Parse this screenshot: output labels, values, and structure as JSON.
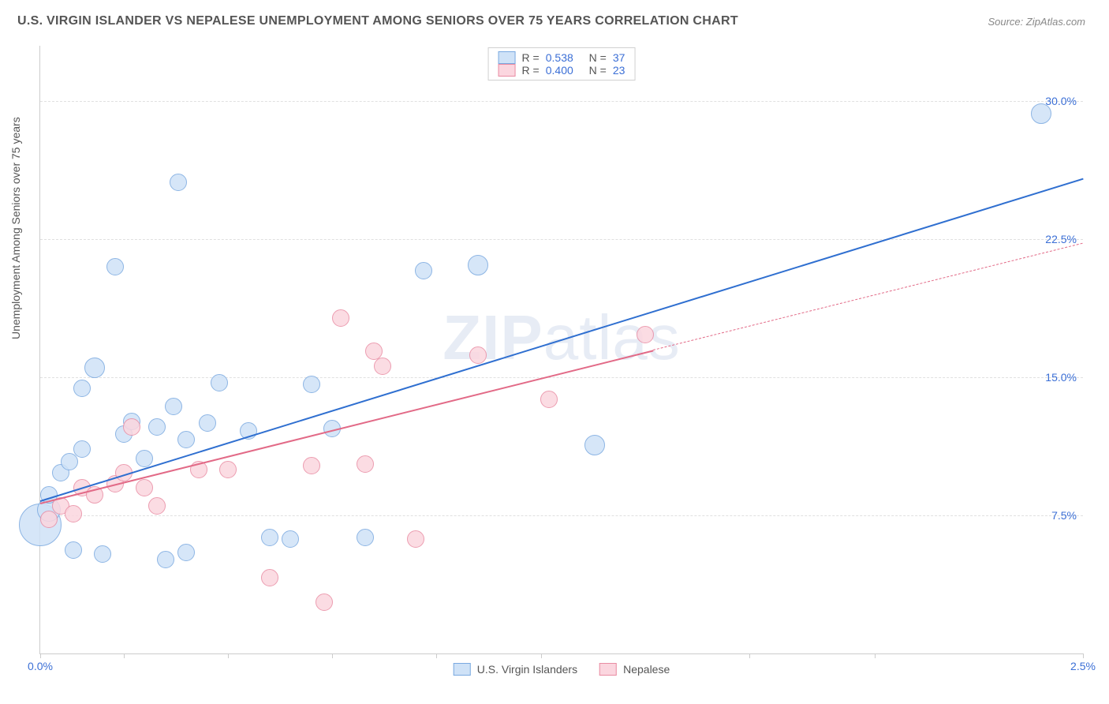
{
  "title": "U.S. VIRGIN ISLANDER VS NEPALESE UNEMPLOYMENT AMONG SENIORS OVER 75 YEARS CORRELATION CHART",
  "source": "Source: ZipAtlas.com",
  "ylabel": "Unemployment Among Seniors over 75 years",
  "watermark_a": "ZIP",
  "watermark_b": "atlas",
  "chart": {
    "type": "scatter",
    "background_color": "#ffffff",
    "grid_color": "#e0e0e0",
    "axis_color": "#cccccc",
    "tick_label_color": "#3b6fd6",
    "label_color": "#555555",
    "label_fontsize": 14,
    "title_fontsize": 16,
    "xlim": [
      0.0,
      2.5
    ],
    "ylim": [
      0.0,
      33.0
    ],
    "xticks": [
      0.0,
      0.2,
      0.45,
      0.7,
      0.95,
      1.2,
      1.7,
      2.0,
      2.5
    ],
    "xtick_labels": {
      "0.0": "0.0%",
      "2.5": "2.5%"
    },
    "yticks": [
      7.5,
      15.0,
      22.5,
      30.0
    ],
    "ytick_labels": [
      "7.5%",
      "15.0%",
      "22.5%",
      "30.0%"
    ]
  },
  "series": [
    {
      "name": "U.S. Virgin Islanders",
      "fill": "#cfe2f7",
      "stroke": "#7aa9e0",
      "line_color": "#2f6fd0",
      "R_label": "R =",
      "R": "0.538",
      "N_label": "N =",
      "N": "37",
      "trend": {
        "x1": 0.0,
        "y1": 8.3,
        "x2": 2.5,
        "y2": 25.8,
        "width": 2
      },
      "points": [
        {
          "x": 0.0,
          "y": 7.0,
          "r": 26
        },
        {
          "x": 0.02,
          "y": 7.8,
          "r": 14
        },
        {
          "x": 0.02,
          "y": 8.6,
          "r": 10
        },
        {
          "x": 0.05,
          "y": 9.8,
          "r": 10
        },
        {
          "x": 0.07,
          "y": 10.4,
          "r": 10
        },
        {
          "x": 0.1,
          "y": 11.1,
          "r": 10
        },
        {
          "x": 0.08,
          "y": 5.6,
          "r": 10
        },
        {
          "x": 0.15,
          "y": 5.4,
          "r": 10
        },
        {
          "x": 0.1,
          "y": 14.4,
          "r": 10
        },
        {
          "x": 0.13,
          "y": 15.5,
          "r": 12
        },
        {
          "x": 0.18,
          "y": 21.0,
          "r": 10
        },
        {
          "x": 0.2,
          "y": 11.9,
          "r": 10
        },
        {
          "x": 0.22,
          "y": 12.6,
          "r": 10
        },
        {
          "x": 0.25,
          "y": 10.6,
          "r": 10
        },
        {
          "x": 0.28,
          "y": 12.3,
          "r": 10
        },
        {
          "x": 0.3,
          "y": 5.1,
          "r": 10
        },
        {
          "x": 0.33,
          "y": 25.6,
          "r": 10
        },
        {
          "x": 0.32,
          "y": 13.4,
          "r": 10
        },
        {
          "x": 0.35,
          "y": 11.6,
          "r": 10
        },
        {
          "x": 0.35,
          "y": 5.5,
          "r": 10
        },
        {
          "x": 0.4,
          "y": 12.5,
          "r": 10
        },
        {
          "x": 0.43,
          "y": 14.7,
          "r": 10
        },
        {
          "x": 0.5,
          "y": 12.1,
          "r": 10
        },
        {
          "x": 0.55,
          "y": 6.3,
          "r": 10
        },
        {
          "x": 0.6,
          "y": 6.2,
          "r": 10
        },
        {
          "x": 0.65,
          "y": 14.6,
          "r": 10
        },
        {
          "x": 0.7,
          "y": 12.2,
          "r": 10
        },
        {
          "x": 0.78,
          "y": 6.3,
          "r": 10
        },
        {
          "x": 0.92,
          "y": 20.8,
          "r": 10
        },
        {
          "x": 1.05,
          "y": 21.1,
          "r": 12
        },
        {
          "x": 1.33,
          "y": 11.3,
          "r": 12
        },
        {
          "x": 2.4,
          "y": 29.3,
          "r": 12
        }
      ]
    },
    {
      "name": "Nepalese",
      "fill": "#fbd6df",
      "stroke": "#e98ca3",
      "line_color": "#e26a87",
      "R_label": "R =",
      "R": "0.400",
      "N_label": "N =",
      "N": "23",
      "trend_solid": {
        "x1": 0.0,
        "y1": 8.2,
        "x2": 1.47,
        "y2": 16.5,
        "width": 2
      },
      "trend_dash": {
        "x1": 1.47,
        "y1": 16.5,
        "x2": 2.5,
        "y2": 22.3,
        "width": 1
      },
      "points": [
        {
          "x": 0.02,
          "y": 7.3,
          "r": 10
        },
        {
          "x": 0.05,
          "y": 8.0,
          "r": 10
        },
        {
          "x": 0.08,
          "y": 7.6,
          "r": 10
        },
        {
          "x": 0.1,
          "y": 9.0,
          "r": 10
        },
        {
          "x": 0.13,
          "y": 8.6,
          "r": 10
        },
        {
          "x": 0.18,
          "y": 9.2,
          "r": 10
        },
        {
          "x": 0.2,
          "y": 9.8,
          "r": 10
        },
        {
          "x": 0.22,
          "y": 12.3,
          "r": 10
        },
        {
          "x": 0.25,
          "y": 9.0,
          "r": 10
        },
        {
          "x": 0.28,
          "y": 8.0,
          "r": 10
        },
        {
          "x": 0.38,
          "y": 10.0,
          "r": 10
        },
        {
          "x": 0.45,
          "y": 10.0,
          "r": 10
        },
        {
          "x": 0.55,
          "y": 4.1,
          "r": 10
        },
        {
          "x": 0.65,
          "y": 10.2,
          "r": 10
        },
        {
          "x": 0.68,
          "y": 2.8,
          "r": 10
        },
        {
          "x": 0.72,
          "y": 18.2,
          "r": 10
        },
        {
          "x": 0.78,
          "y": 10.3,
          "r": 10
        },
        {
          "x": 0.8,
          "y": 16.4,
          "r": 10
        },
        {
          "x": 0.82,
          "y": 15.6,
          "r": 10
        },
        {
          "x": 0.9,
          "y": 6.2,
          "r": 10
        },
        {
          "x": 1.05,
          "y": 16.2,
          "r": 10
        },
        {
          "x": 1.22,
          "y": 13.8,
          "r": 10
        },
        {
          "x": 1.45,
          "y": 17.3,
          "r": 10
        }
      ]
    }
  ],
  "legend_bottom": [
    {
      "label": "U.S. Virgin Islanders",
      "fill": "#cfe2f7",
      "stroke": "#7aa9e0"
    },
    {
      "label": "Nepalese",
      "fill": "#fbd6df",
      "stroke": "#e98ca3"
    }
  ]
}
